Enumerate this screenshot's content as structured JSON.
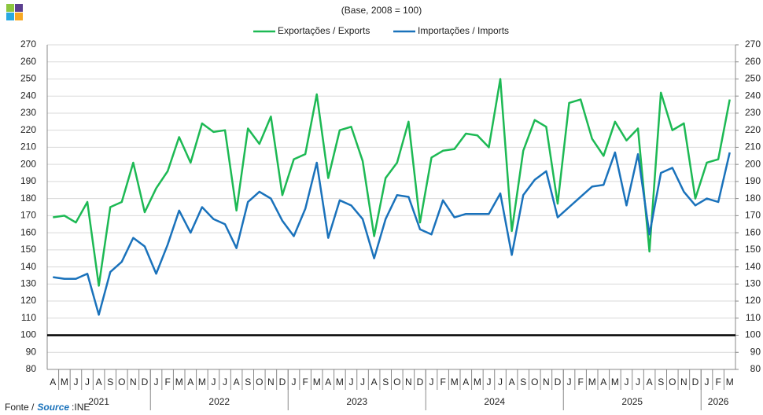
{
  "chart_data": {
    "type": "line",
    "subtitle": "(Base, 2008 = 100)",
    "categories": [
      "A",
      "M",
      "J",
      "J",
      "A",
      "S",
      "O",
      "N",
      "D",
      "J",
      "F",
      "M",
      "A",
      "M",
      "J",
      "J",
      "A",
      "S",
      "O",
      "N",
      "D",
      "J",
      "F",
      "M",
      "A",
      "M",
      "J",
      "J",
      "A",
      "S",
      "O",
      "N",
      "D",
      "J",
      "F",
      "M",
      "A",
      "M",
      "J",
      "J",
      "A",
      "S",
      "O",
      "N",
      "D",
      "J",
      "F",
      "M",
      "A",
      "M",
      "J",
      "J",
      "A",
      "S",
      "O",
      "N",
      "D",
      "J",
      "F",
      "M"
    ],
    "years": [
      "2021",
      "2022",
      "2023",
      "2024",
      "2025",
      "2026"
    ],
    "series": [
      {
        "name": "Exportações / Exports",
        "color": "#1db954",
        "values": [
          169,
          170,
          166,
          178,
          129,
          175,
          178,
          201,
          172,
          186,
          196,
          216,
          201,
          224,
          219,
          220,
          173,
          221,
          212,
          228,
          182,
          203,
          206,
          241,
          192,
          220,
          222,
          202,
          158,
          192,
          201,
          225,
          166,
          204,
          208,
          209,
          218,
          217,
          210,
          250,
          161,
          208,
          226,
          222,
          177,
          236,
          238,
          215,
          205,
          225,
          214,
          221,
          149,
          242,
          220,
          224,
          180,
          201,
          203,
          238
        ]
      },
      {
        "name": "Importações / Imports",
        "color": "#1a72bb",
        "values": [
          134,
          133,
          133,
          136,
          112,
          137,
          143,
          157,
          152,
          136,
          153,
          173,
          160,
          175,
          168,
          165,
          151,
          178,
          184,
          180,
          167,
          158,
          174,
          201,
          157,
          179,
          176,
          168,
          145,
          168,
          182,
          181,
          162,
          159,
          179,
          169,
          171,
          171,
          171,
          183,
          147,
          182,
          191,
          196,
          169,
          175,
          181,
          187,
          188,
          207,
          176,
          206,
          159,
          195,
          198,
          184,
          176,
          180,
          178,
          207
        ]
      }
    ],
    "ylim": [
      80,
      270
    ],
    "yticks": [
      80,
      90,
      100,
      110,
      120,
      130,
      140,
      150,
      160,
      170,
      180,
      190,
      200,
      210,
      220,
      230,
      240,
      250,
      260,
      270
    ],
    "y2lim": [
      80,
      270
    ],
    "y2ticks": [
      80,
      90,
      100,
      110,
      120,
      130,
      140,
      150,
      160,
      170,
      180,
      190,
      200,
      210,
      220,
      230,
      240,
      250,
      260,
      270
    ],
    "reference_line": 100,
    "grid": true,
    "legend": "top",
    "source_label": "Fonte /",
    "source_label_en": "Source",
    "source_value": ":INE"
  }
}
